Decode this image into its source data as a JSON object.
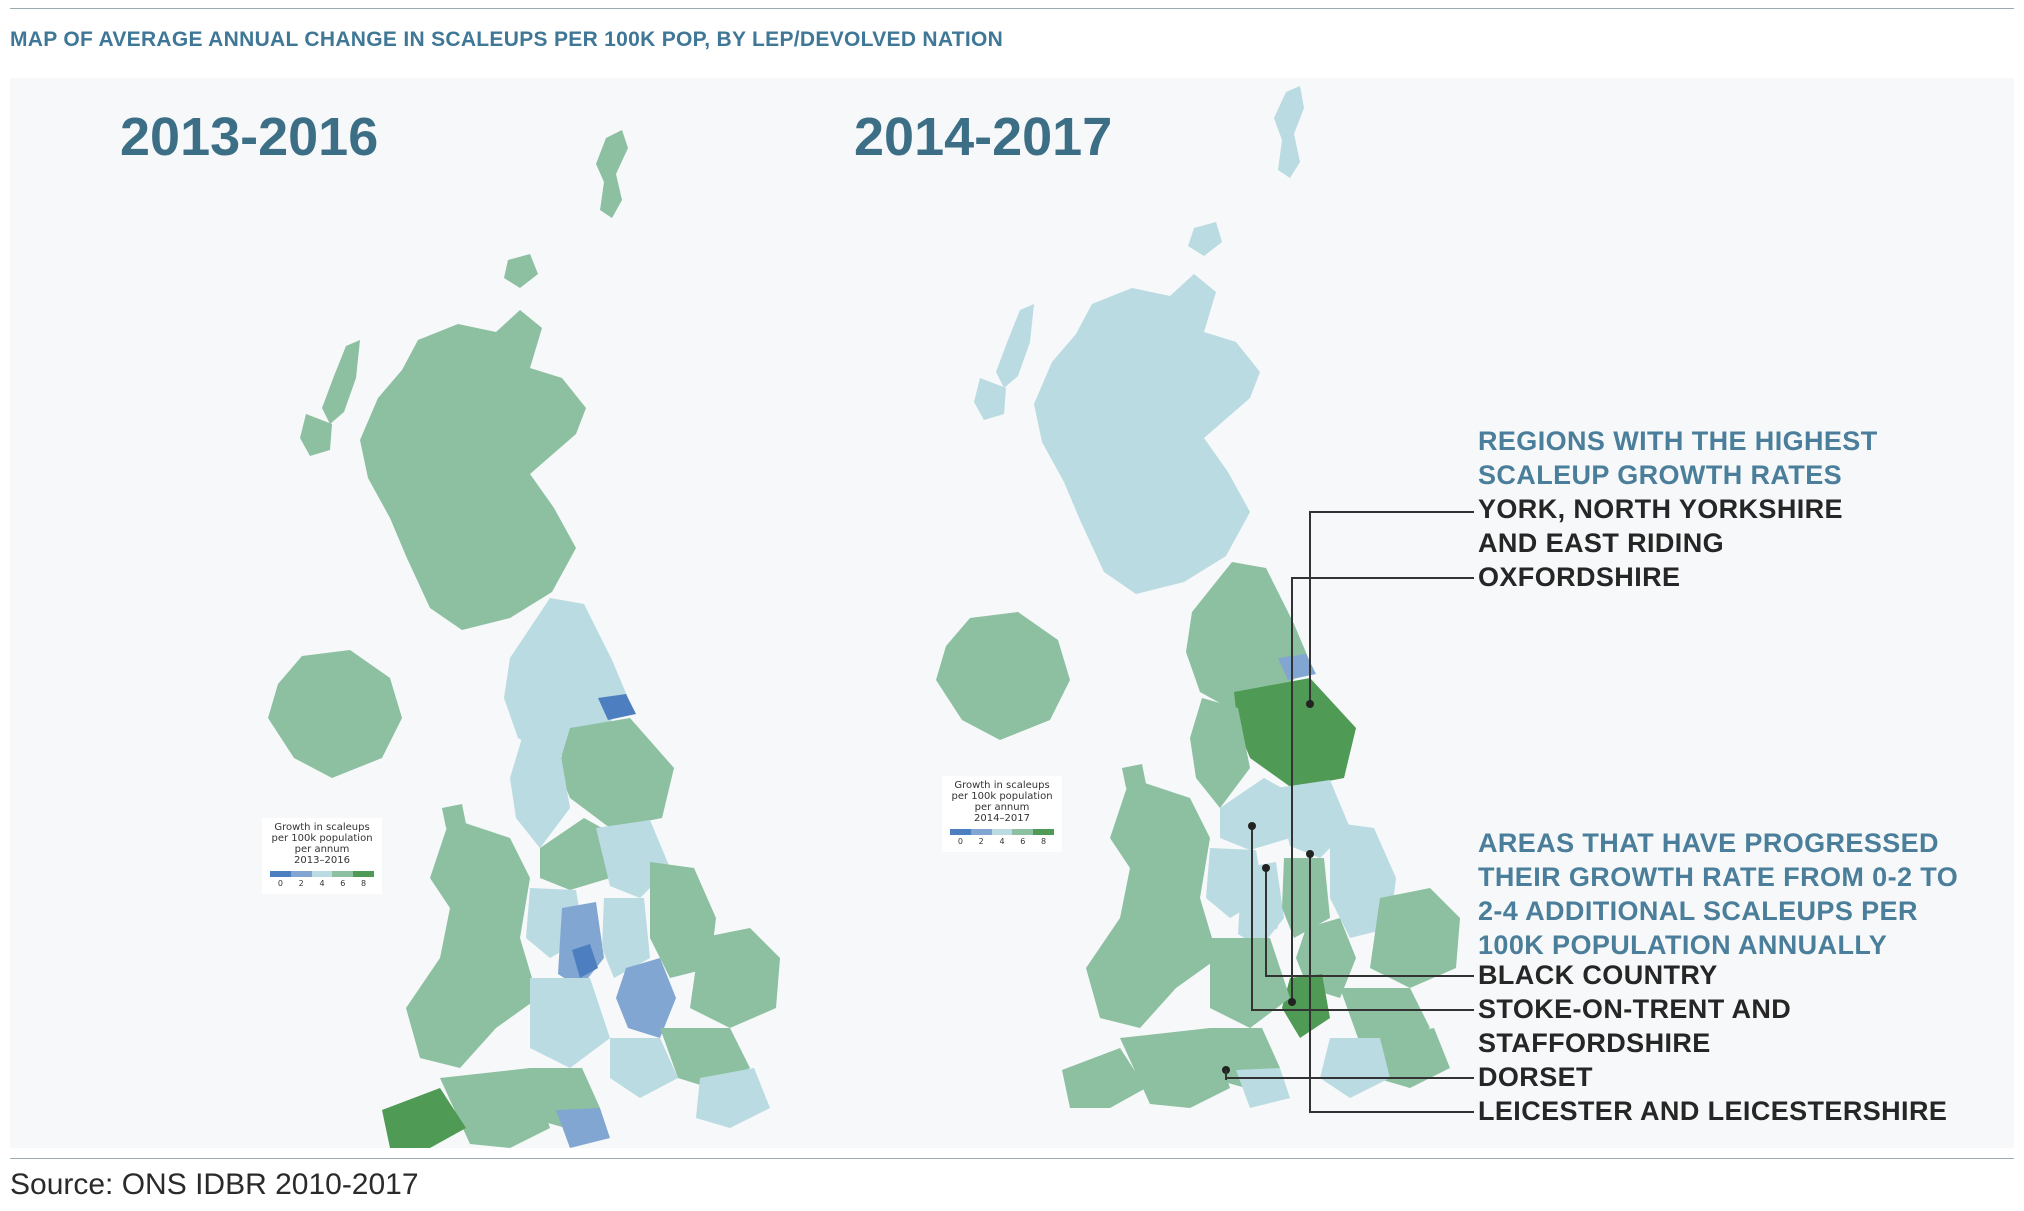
{
  "header": {
    "title": "MAP OF AVERAGE ANNUAL CHANGE IN SCALEUPS PER 100K POP, BY LEP/DEVOLVED NATION"
  },
  "maps": [
    {
      "period": "2013-2016",
      "legend": {
        "line1": "Growth in scaleups",
        "line2": "per 100k population",
        "line3": "per annum",
        "line4": "2013–2016",
        "ticks": [
          "0",
          "2",
          "4",
          "6",
          "8"
        ]
      }
    },
    {
      "period": "2014-2017",
      "legend": {
        "line1": "Growth in scaleups",
        "line2": "per 100k population",
        "line3": "per annum",
        "line4": "2014–2017",
        "ticks": [
          "0",
          "2",
          "4",
          "6",
          "8"
        ]
      }
    }
  ],
  "colors": {
    "c0_2": "#4d7fc0",
    "c2_4": "#b9dbe1",
    "c4_6": "#8cc0a0",
    "c6_8": "#4f9a54",
    "blue_mid": "#82a6d2"
  },
  "annotations": {
    "highest": {
      "heading_line1": "REGIONS WITH THE HIGHEST",
      "heading_line2": "SCALEUP GROWTH RATES",
      "items": [
        "YORK, NORTH YORKSHIRE",
        "AND EAST RIDING",
        "OXFORDSHIRE"
      ]
    },
    "progressed": {
      "heading_line1": "AREAS THAT HAVE PROGRESSED",
      "heading_line2": "THEIR GROWTH RATE FROM 0-2 TO",
      "heading_line3": "2-4 ADDITIONAL SCALEUPS PER",
      "heading_line4": "100K POPULATION ANNUALLY",
      "items": [
        "BLACK COUNTRY",
        "STOKE-ON-TRENT AND",
        "STAFFORDSHIRE",
        "DORSET",
        "LEICESTER AND LEICESTERSHIRE"
      ]
    }
  },
  "source": "Source: ONS IDBR 2010-2017"
}
